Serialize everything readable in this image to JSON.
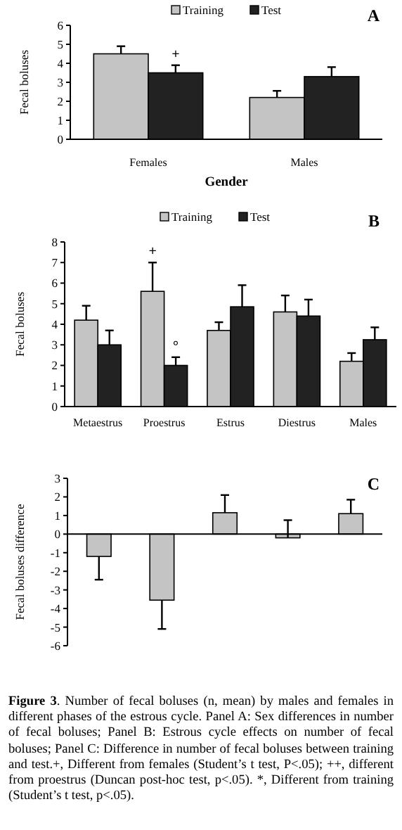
{
  "chart_data": [
    {
      "type": "bar",
      "title": "A",
      "xlabel": "Gender",
      "ylabel": "Fecal boluses",
      "categories": [
        "Females",
        "Males"
      ],
      "ylim": [
        0,
        6
      ],
      "yticks": [
        0,
        1,
        2,
        3,
        4,
        5,
        6
      ],
      "grid": false,
      "legend": "top",
      "series": [
        {
          "name": "Training",
          "color": "#c4c4c4",
          "values": [
            4.5,
            2.2
          ],
          "errors": [
            [
              4.5,
              4.9
            ],
            [
              2.2,
              2.55
            ]
          ]
        },
        {
          "name": "Test",
          "color": "#222222",
          "values": [
            3.5,
            3.3
          ],
          "errors": [
            [
              3.5,
              3.9
            ],
            [
              3.3,
              3.8
            ]
          ]
        }
      ],
      "annotations": [
        {
          "text": "+",
          "x": "Females",
          "y": 3.5
        }
      ]
    },
    {
      "type": "bar",
      "title": "B",
      "ylabel": "Fecal boluses",
      "categories": [
        "Metaestrus",
        "Proestrus",
        "Estrus",
        "Diestrus",
        "Males"
      ],
      "ylim": [
        0,
        8
      ],
      "yticks": [
        0,
        1,
        2,
        3,
        4,
        5,
        6,
        7,
        8
      ],
      "grid": false,
      "legend": "top",
      "series": [
        {
          "name": "Training",
          "color": "#c4c4c4",
          "values": [
            4.2,
            5.6,
            3.7,
            4.6,
            2.2
          ],
          "errors": [
            [
              4.2,
              4.9
            ],
            [
              5.6,
              7.0
            ],
            [
              3.7,
              4.1
            ],
            [
              4.6,
              5.4
            ],
            [
              2.2,
              2.6
            ]
          ]
        },
        {
          "name": "Test",
          "color": "#222222",
          "values": [
            3.0,
            2.0,
            4.85,
            4.4,
            3.25
          ],
          "errors": [
            [
              3.0,
              3.7
            ],
            [
              2.0,
              2.4
            ],
            [
              4.85,
              5.9
            ],
            [
              4.4,
              5.2
            ],
            [
              3.25,
              3.85
            ]
          ]
        }
      ],
      "annotations": [
        {
          "text": "+",
          "x": "Proestrus",
          "y": 5.6
        },
        {
          "text": "°",
          "x": "Proestrus",
          "y": 2.0
        }
      ]
    },
    {
      "type": "bar",
      "title": "C",
      "ylabel": "Fecal boluses difference",
      "categories": [
        null,
        null,
        null,
        null,
        null
      ],
      "ylim": [
        -6,
        3
      ],
      "yticks": [
        -6,
        -5,
        -4,
        -3,
        -2,
        -1,
        0,
        1,
        2,
        3
      ],
      "color": "#c4c4c4",
      "values": [
        -1.2,
        -3.55,
        1.15,
        -0.2,
        1.1
      ],
      "errors": [
        [
          -2.45,
          -1.2
        ],
        [
          -5.1,
          -3.55
        ],
        [
          1.15,
          2.1
        ],
        [
          -0.2,
          0.75
        ],
        [
          1.1,
          1.85
        ]
      ],
      "annotations": [
        "Figure 3. Number of fecal boluses (n, mean) by males and females in different phases of the estrous cycle. Panel A: Sex differences in number of fecal boluses; Panel B: Estrous cycle effects on number of fecal boluses; Panel C: Difference in number of fecal boluses between training and test.+, Different from females (Student’s t test, P<.05); ++, different from proestrus (Duncan post-hoc test, p<.05). *, Different from training (Student’s t test, p<.05)."
      ]
    }
  ]
}
